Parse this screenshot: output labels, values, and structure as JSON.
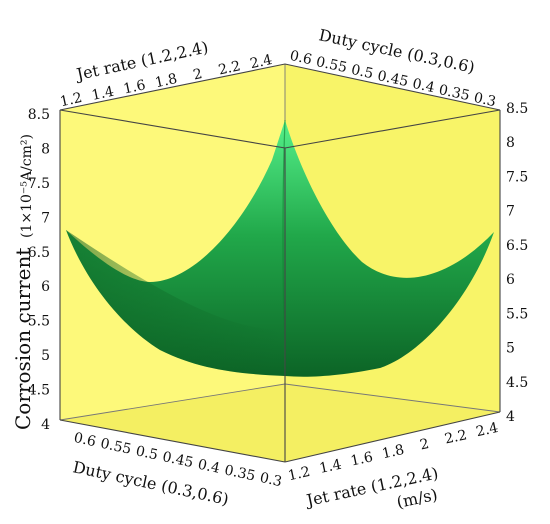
{
  "chart_data": {
    "type": "surface3d",
    "title": "",
    "z_axis": {
      "label": "Corrosion current",
      "unit_label": "(1×10⁻⁵A/cm²)",
      "range": [
        4,
        8.5
      ],
      "ticks": [
        "4",
        "4.5",
        "5",
        "5.5",
        "6",
        "6.5",
        "7",
        "7.5",
        "8",
        "8.5"
      ]
    },
    "x_axis": {
      "name": "Jet rate",
      "label_top": "Jet rate (1.2,2.4)",
      "label_bottom": "Jet rate (1.2,2.4)",
      "unit": "(m/s)",
      "range": [
        1.2,
        2.4
      ],
      "ticks": [
        "1.2",
        "1.4",
        "1.6",
        "1.8",
        "2",
        "2.2",
        "2.4"
      ]
    },
    "y_axis": {
      "name": "Duty cycle",
      "label_top": "Duty cycle (0.3,0.6)",
      "label_bottom": "Duty cycle (0.3,0.6)",
      "range": [
        0.3,
        0.6
      ],
      "ticks_top": [
        "0.6",
        "0.55",
        "0.5",
        "0.45",
        "0.4",
        "0.35",
        "0.3"
      ],
      "ticks_bottom": [
        "0.6",
        "0.55",
        "0.5",
        "0.45",
        "0.4",
        "0.35",
        "0.3"
      ]
    },
    "surface": {
      "description_values": [
        {
          "jet_rate": 1.2,
          "duty_cycle": 0.6,
          "corrosion_current": 8.3
        },
        {
          "jet_rate": 1.2,
          "duty_cycle": 0.3,
          "corrosion_current": 6.8
        },
        {
          "jet_rate": 2.4,
          "duty_cycle": 0.3,
          "corrosion_current": 8.4
        },
        {
          "jet_rate": 2.4,
          "duty_cycle": 0.6,
          "corrosion_current": 6.75
        },
        {
          "jet_rate": 1.8,
          "duty_cycle": 0.45,
          "corrosion_current": 5.0
        }
      ],
      "minimum": 4.9
    },
    "colors": {
      "box_face": "#fdf97a",
      "surface_light": "#44e878",
      "surface_dark": "#0e6e2a",
      "edge": "#444444"
    }
  }
}
